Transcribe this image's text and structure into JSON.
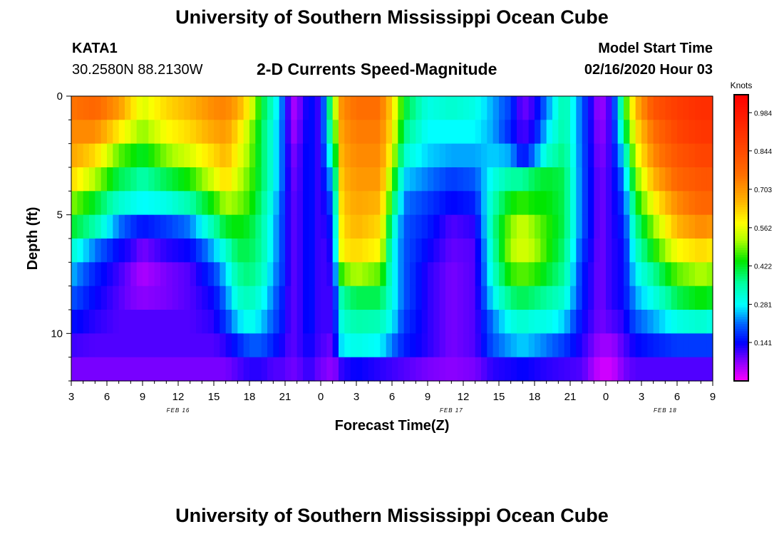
{
  "page": {
    "title_top": "University of Southern Mississippi Ocean Cube",
    "title_bottom": "University of Southern Mississippi Ocean Cube",
    "station": "KATA1",
    "coords": "30.2580N 88.2130W",
    "chart_title": "2-D Currents Speed-Magnitude",
    "model_start_label": "Model Start Time",
    "model_start_value": "02/16/2020 Hour 03"
  },
  "chart_data": {
    "type": "heatmap",
    "title": "2-D Currents Speed-Magnitude",
    "xlabel": "Forecast Time(Z)",
    "ylabel": "Depth (ft)",
    "x_tick_labels": [
      "3",
      "6",
      "9",
      "12",
      "15",
      "18",
      "21",
      "0",
      "3",
      "6",
      "9",
      "12",
      "15",
      "18",
      "21",
      "0",
      "3",
      "6",
      "9"
    ],
    "x_hours_from_start": [
      0,
      3,
      6,
      9,
      12,
      15,
      18,
      21,
      24,
      27,
      30,
      33,
      36,
      39,
      42,
      45,
      48,
      51,
      54
    ],
    "x_range_hours": [
      0,
      54
    ],
    "date_labels": [
      {
        "text": "FEB 16",
        "hour": 9
      },
      {
        "text": "FEB 17",
        "hour": 32
      },
      {
        "text": "FEB 18",
        "hour": 50
      }
    ],
    "y_tick_labels": [
      "0",
      "5",
      "10"
    ],
    "y_tick_values": [
      0,
      5,
      10
    ],
    "y_range_ft": [
      0,
      12
    ],
    "depth_levels_ft": [
      0.5,
      1.5,
      2.5,
      3.5,
      4.5,
      5.5,
      6.5,
      7.5,
      8.5,
      9.5,
      10.5,
      11.5
    ],
    "colorbar": {
      "title": "Knots",
      "tick_labels": [
        "0.984",
        "0.844",
        "0.703",
        "0.562",
        "0.422",
        "0.281",
        "0.141"
      ],
      "tick_values": [
        0.984,
        0.844,
        0.703,
        0.562,
        0.422,
        0.281,
        0.141
      ],
      "range": [
        0,
        1.05
      ]
    },
    "keyframes": [
      {
        "hour": 0,
        "v": [
          0.75,
          0.72,
          0.68,
          0.62,
          0.5,
          0.42,
          0.32,
          0.25,
          0.2,
          0.15,
          0.11,
          0.08
        ]
      },
      {
        "hour": 2,
        "v": [
          0.78,
          0.72,
          0.62,
          0.52,
          0.42,
          0.35,
          0.22,
          0.16,
          0.14,
          0.12,
          0.1,
          0.08
        ]
      },
      {
        "hour": 4,
        "v": [
          0.7,
          0.6,
          0.48,
          0.4,
          0.32,
          0.22,
          0.14,
          0.11,
          0.1,
          0.1,
          0.1,
          0.08
        ]
      },
      {
        "hour": 5,
        "v": [
          0.62,
          0.55,
          0.45,
          0.38,
          0.3,
          0.18,
          0.12,
          0.08,
          0.08,
          0.1,
          0.1,
          0.08
        ]
      },
      {
        "hour": 6,
        "v": [
          0.55,
          0.5,
          0.42,
          0.35,
          0.28,
          0.15,
          0.08,
          0.05,
          0.07,
          0.1,
          0.1,
          0.08
        ]
      },
      {
        "hour": 8,
        "v": [
          0.62,
          0.58,
          0.5,
          0.4,
          0.3,
          0.18,
          0.12,
          0.08,
          0.08,
          0.1,
          0.1,
          0.08
        ]
      },
      {
        "hour": 10,
        "v": [
          0.66,
          0.62,
          0.55,
          0.45,
          0.35,
          0.22,
          0.14,
          0.1,
          0.1,
          0.1,
          0.1,
          0.08
        ]
      },
      {
        "hour": 12,
        "v": [
          0.72,
          0.68,
          0.62,
          0.55,
          0.45,
          0.35,
          0.25,
          0.18,
          0.14,
          0.12,
          0.1,
          0.08
        ]
      },
      {
        "hour": 13,
        "v": [
          0.73,
          0.7,
          0.66,
          0.62,
          0.52,
          0.42,
          0.32,
          0.26,
          0.22,
          0.18,
          0.12,
          0.08
        ]
      },
      {
        "hour": 14,
        "v": [
          0.68,
          0.62,
          0.58,
          0.54,
          0.5,
          0.44,
          0.4,
          0.36,
          0.32,
          0.26,
          0.16,
          0.1
        ]
      },
      {
        "hour": 15,
        "v": [
          0.58,
          0.52,
          0.5,
          0.48,
          0.46,
          0.42,
          0.4,
          0.38,
          0.34,
          0.3,
          0.2,
          0.12
        ]
      },
      {
        "hour": 16,
        "v": [
          0.42,
          0.4,
          0.4,
          0.4,
          0.38,
          0.36,
          0.36,
          0.34,
          0.3,
          0.26,
          0.2,
          0.12
        ]
      },
      {
        "hour": 17,
        "v": [
          0.32,
          0.3,
          0.3,
          0.3,
          0.28,
          0.26,
          0.26,
          0.24,
          0.22,
          0.2,
          0.16,
          0.1
        ]
      },
      {
        "hour": 18,
        "v": [
          0.18,
          0.18,
          0.18,
          0.18,
          0.16,
          0.16,
          0.16,
          0.16,
          0.14,
          0.14,
          0.12,
          0.1
        ]
      },
      {
        "hour": 18.5,
        "v": [
          0.04,
          0.05,
          0.07,
          0.08,
          0.09,
          0.09,
          0.09,
          0.09,
          0.09,
          0.09,
          0.09,
          0.08
        ]
      },
      {
        "hour": 19.5,
        "v": [
          0.1,
          0.11,
          0.12,
          0.12,
          0.12,
          0.12,
          0.12,
          0.12,
          0.12,
          0.12,
          0.12,
          0.1
        ]
      },
      {
        "hour": 20,
        "v": [
          0.16,
          0.16,
          0.16,
          0.16,
          0.16,
          0.16,
          0.16,
          0.16,
          0.16,
          0.16,
          0.14,
          0.12
        ]
      },
      {
        "hour": 21,
        "v": [
          0.1,
          0.1,
          0.1,
          0.1,
          0.1,
          0.1,
          0.1,
          0.1,
          0.1,
          0.1,
          0.1,
          0.08
        ]
      },
      {
        "hour": 21.5,
        "v": [
          0.3,
          0.3,
          0.25,
          0.2,
          0.16,
          0.14,
          0.12,
          0.12,
          0.12,
          0.12,
          0.1,
          0.08
        ]
      },
      {
        "hour": 22,
        "v": [
          0.46,
          0.4,
          0.32,
          0.25,
          0.2,
          0.16,
          0.14,
          0.12,
          0.1,
          0.1,
          0.08,
          0.06
        ]
      },
      {
        "hour": 22.8,
        "v": [
          0.72,
          0.7,
          0.68,
          0.66,
          0.64,
          0.62,
          0.6,
          0.48,
          0.36,
          0.32,
          0.28,
          0.12
        ]
      },
      {
        "hour": 24,
        "v": [
          0.76,
          0.74,
          0.72,
          0.7,
          0.68,
          0.66,
          0.62,
          0.52,
          0.4,
          0.35,
          0.3,
          0.14
        ]
      },
      {
        "hour": 26,
        "v": [
          0.76,
          0.74,
          0.72,
          0.7,
          0.66,
          0.62,
          0.58,
          0.48,
          0.4,
          0.34,
          0.28,
          0.12
        ]
      },
      {
        "hour": 27,
        "v": [
          0.62,
          0.6,
          0.56,
          0.48,
          0.42,
          0.34,
          0.3,
          0.3,
          0.3,
          0.28,
          0.22,
          0.11
        ]
      },
      {
        "hour": 28,
        "v": [
          0.42,
          0.38,
          0.32,
          0.26,
          0.22,
          0.2,
          0.2,
          0.2,
          0.2,
          0.18,
          0.16,
          0.1
        ]
      },
      {
        "hour": 30,
        "v": [
          0.3,
          0.28,
          0.26,
          0.22,
          0.18,
          0.16,
          0.14,
          0.12,
          0.12,
          0.12,
          0.12,
          0.08
        ]
      },
      {
        "hour": 32,
        "v": [
          0.32,
          0.28,
          0.24,
          0.18,
          0.14,
          0.1,
          0.09,
          0.08,
          0.08,
          0.08,
          0.08,
          0.07
        ]
      },
      {
        "hour": 34,
        "v": [
          0.3,
          0.28,
          0.24,
          0.2,
          0.16,
          0.12,
          0.1,
          0.1,
          0.1,
          0.1,
          0.1,
          0.08
        ]
      },
      {
        "hour": 35.5,
        "v": [
          0.24,
          0.24,
          0.26,
          0.3,
          0.34,
          0.36,
          0.34,
          0.32,
          0.28,
          0.22,
          0.2,
          0.12
        ]
      },
      {
        "hour": 37,
        "v": [
          0.18,
          0.16,
          0.24,
          0.36,
          0.44,
          0.5,
          0.52,
          0.46,
          0.38,
          0.3,
          0.24,
          0.13
        ]
      },
      {
        "hour": 38,
        "v": [
          0.08,
          0.1,
          0.14,
          0.36,
          0.46,
          0.54,
          0.55,
          0.48,
          0.4,
          0.32,
          0.26,
          0.14
        ]
      },
      {
        "hour": 39,
        "v": [
          0.12,
          0.14,
          0.22,
          0.4,
          0.44,
          0.5,
          0.52,
          0.46,
          0.38,
          0.3,
          0.24,
          0.13
        ]
      },
      {
        "hour": 40,
        "v": [
          0.22,
          0.26,
          0.32,
          0.42,
          0.44,
          0.46,
          0.46,
          0.42,
          0.36,
          0.3,
          0.22,
          0.12
        ]
      },
      {
        "hour": 41.5,
        "v": [
          0.36,
          0.36,
          0.38,
          0.4,
          0.4,
          0.4,
          0.38,
          0.36,
          0.32,
          0.26,
          0.18,
          0.11
        ]
      },
      {
        "hour": 43,
        "v": [
          0.2,
          0.2,
          0.2,
          0.2,
          0.2,
          0.2,
          0.18,
          0.16,
          0.16,
          0.14,
          0.12,
          0.1
        ]
      },
      {
        "hour": 44.5,
        "v": [
          0.05,
          0.06,
          0.07,
          0.08,
          0.08,
          0.08,
          0.08,
          0.08,
          0.08,
          0.08,
          0.06,
          0.03
        ]
      },
      {
        "hour": 45.5,
        "v": [
          0.12,
          0.12,
          0.12,
          0.12,
          0.12,
          0.12,
          0.12,
          0.12,
          0.12,
          0.1,
          0.06,
          0.03
        ]
      },
      {
        "hour": 46.5,
        "v": [
          0.42,
          0.36,
          0.28,
          0.22,
          0.18,
          0.16,
          0.14,
          0.14,
          0.14,
          0.12,
          0.1,
          0.08
        ]
      },
      {
        "hour": 47.5,
        "v": [
          0.65,
          0.6,
          0.55,
          0.48,
          0.42,
          0.36,
          0.32,
          0.28,
          0.24,
          0.2,
          0.14,
          0.1
        ]
      },
      {
        "hour": 49,
        "v": [
          0.82,
          0.76,
          0.72,
          0.66,
          0.58,
          0.5,
          0.44,
          0.36,
          0.3,
          0.24,
          0.16,
          0.1
        ]
      },
      {
        "hour": 51,
        "v": [
          0.88,
          0.86,
          0.82,
          0.78,
          0.72,
          0.66,
          0.58,
          0.48,
          0.4,
          0.3,
          0.18,
          0.1
        ]
      },
      {
        "hour": 53,
        "v": [
          0.92,
          0.9,
          0.86,
          0.82,
          0.78,
          0.72,
          0.62,
          0.52,
          0.44,
          0.32,
          0.18,
          0.1
        ]
      },
      {
        "hour": 54,
        "v": [
          0.92,
          0.9,
          0.86,
          0.82,
          0.78,
          0.7,
          0.6,
          0.5,
          0.42,
          0.3,
          0.18,
          0.1
        ]
      }
    ]
  }
}
